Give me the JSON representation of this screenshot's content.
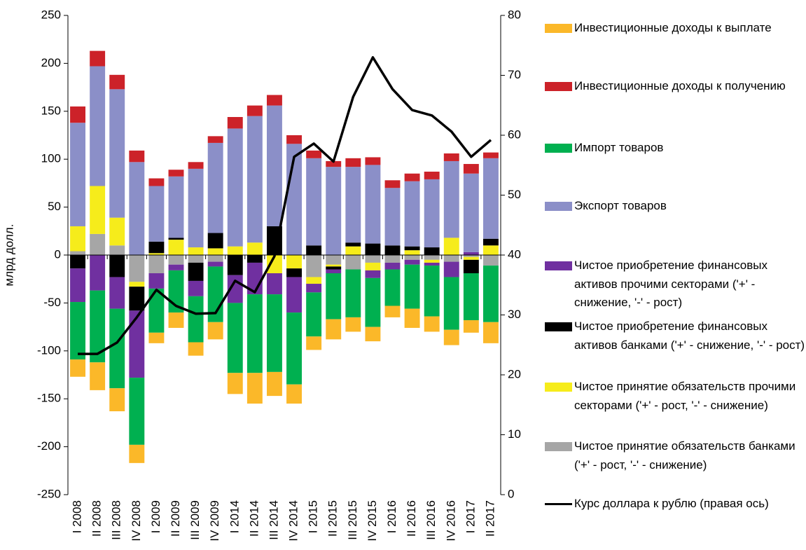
{
  "chart_data": {
    "type": "bar",
    "y_label": "млрд долл.",
    "categories": [
      "I 2008",
      "II 2008",
      "III 2008",
      "IV 2008",
      "I 2009",
      "II 2009",
      "III 2009",
      "IV 2009",
      "I 2014",
      "II 2014",
      "III 2014",
      "IV 2014",
      "I 2015",
      "II 2015",
      "III 2015",
      "IV 2015",
      "I 2016",
      "II 2016",
      "III 2016",
      "IV 2016",
      "I 2017",
      "II 2017"
    ],
    "ylim": [
      -250,
      250
    ],
    "yticks": [
      -250,
      -200,
      -150,
      -100,
      -50,
      0,
      50,
      100,
      150,
      200,
      250
    ],
    "y2lim": [
      0,
      80
    ],
    "y2ticks": [
      0,
      10,
      20,
      30,
      40,
      50,
      60,
      70,
      80
    ],
    "series": [
      {
        "name": "Инвестиционные доходы к выплате",
        "color": "#fbb829",
        "values": [
          -18,
          -29,
          -24,
          -19,
          -11,
          -16,
          -14,
          -18,
          -22,
          -32,
          -25,
          -20,
          -14,
          -21,
          -15,
          -15,
          -12,
          -20,
          -16,
          -16,
          -13,
          -22
        ]
      },
      {
        "name": "Инвестиционные доходы к получению",
        "color": "#cc2229",
        "values": [
          17,
          16,
          15,
          12,
          8,
          7,
          7,
          7,
          12,
          11,
          11,
          9,
          8,
          6,
          9,
          8,
          8,
          8,
          8,
          8,
          10,
          6
        ]
      },
      {
        "name": "Импорт товаров",
        "color": "#00b050",
        "values": [
          -60,
          -75,
          -83,
          -70,
          -46,
          -44,
          -48,
          -58,
          -73,
          -82,
          -81,
          -75,
          -46,
          -48,
          -50,
          -51,
          -38,
          -46,
          -53,
          -55,
          -49,
          -59
        ]
      },
      {
        "name": "Экспорт товаров",
        "color": "#8b8fc8",
        "values": [
          108,
          125,
          134,
          97,
          58,
          64,
          82,
          94,
          123,
          132,
          126,
          116,
          91,
          92,
          79,
          82,
          60,
          68,
          71,
          80,
          82,
          84
        ]
      },
      {
        "name": "Чистое приобретение финансовых активов прочими секторами ('+' - снижение, '-' - рост)",
        "color": "#7030a0",
        "values": [
          -35,
          -37,
          -33,
          -70,
          -16,
          -6,
          -16,
          -5,
          -29,
          -33,
          -22,
          -37,
          -9,
          -4,
          0,
          -8,
          -7,
          -5,
          -3,
          -16,
          3,
          0
        ]
      },
      {
        "name": "Чистое приобретение финансовых активов банками ('+' - снижение, '-' - рост)",
        "color": "#000000",
        "values": [
          -14,
          0,
          -23,
          -25,
          12,
          2,
          -19,
          16,
          -21,
          -8,
          30,
          -9,
          10,
          -3,
          4,
          12,
          10,
          4,
          8,
          0,
          -14,
          7
        ]
      },
      {
        "name": "Чистое принятие обязательств прочими секторами ('+' - рост, '-' - снижение)",
        "color": "#f6ec1b",
        "values": [
          26,
          50,
          29,
          -5,
          2,
          16,
          8,
          7,
          9,
          13,
          -19,
          -14,
          -7,
          -2,
          9,
          -8,
          0,
          5,
          -3,
          18,
          -3,
          10
        ]
      },
      {
        "name": "Чистое принятие обязательств банками ('+' - рост, '-' - снижение)",
        "color": "#a6a6a6",
        "values": [
          4,
          22,
          10,
          -28,
          -19,
          -10,
          -8,
          -7,
          0,
          0,
          0,
          0,
          -23,
          -10,
          -15,
          -8,
          -8,
          -5,
          -5,
          -7,
          -2,
          -11
        ]
      },
      {
        "name": "Курс доллара к рублю (правая ось)",
        "color": "#000000",
        "type": "line",
        "axis": "y2",
        "values": [
          23.5,
          23.5,
          25.4,
          29.6,
          34.2,
          31.5,
          30.2,
          30.3,
          35.7,
          33.8,
          39.8,
          56.4,
          58.6,
          55.6,
          66.4,
          73.0,
          67.7,
          64.2,
          63.3,
          60.6,
          56.4,
          59.2
        ]
      }
    ]
  }
}
